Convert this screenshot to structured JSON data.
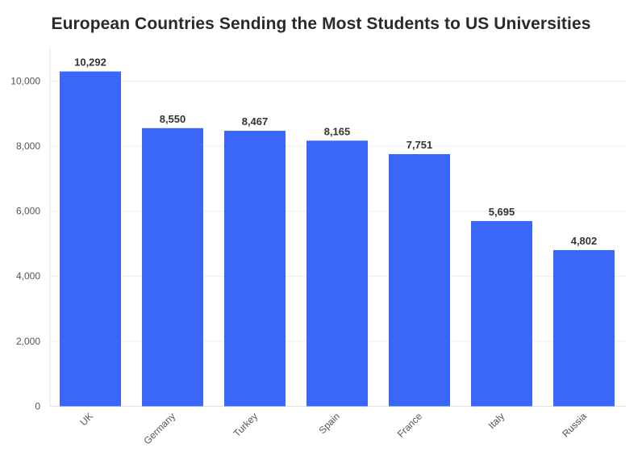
{
  "chart_data": {
    "type": "bar",
    "title": "European Countries Sending the Most Students to US Universities",
    "xlabel": "",
    "ylabel": "",
    "categories": [
      "UK",
      "Germany",
      "Turkey",
      "Spain",
      "France",
      "Italy",
      "Russia"
    ],
    "values": [
      10292,
      8550,
      8467,
      8165,
      7751,
      5695,
      4802
    ],
    "value_labels": [
      "10,292",
      "8,550",
      "8,467",
      "8,165",
      "7,751",
      "5,695",
      "4,802"
    ],
    "ylim": [
      0,
      11000
    ],
    "yticks": [
      0,
      2000,
      4000,
      6000,
      8000,
      10000
    ],
    "ytick_labels": [
      "0",
      "2,000",
      "4,000",
      "6,000",
      "8,000",
      "10,000"
    ],
    "grid": true,
    "legend": "none",
    "bar_color": "#3a66fa"
  }
}
